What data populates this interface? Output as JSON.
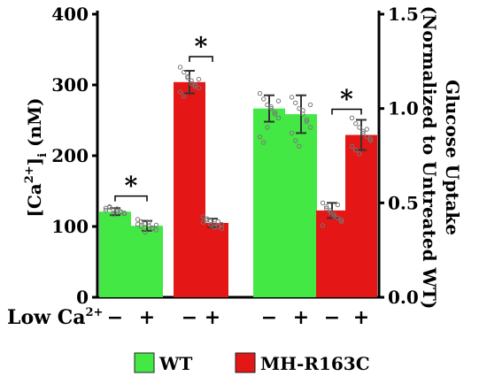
{
  "chart_data": {
    "type": "bar",
    "left_axis": {
      "label_main": "[Ca",
      "label_sup": "2+",
      "label_close": "]",
      "label_sub": "i",
      "label_unit": " (nM)",
      "ylim": [
        0,
        400
      ],
      "ticks": [
        "0",
        "100",
        "200",
        "300",
        "400"
      ]
    },
    "right_axis": {
      "label_line1": "Glucose Uptake",
      "label_line2": "(Normalized to Untreated WT)",
      "ylim": [
        0,
        1.5
      ],
      "ticks": [
        "0.0",
        "0.5",
        "1.0",
        "1.5"
      ]
    },
    "row_label": {
      "main": "Low Ca",
      "sup": "2+"
    },
    "colors": {
      "WT": "#44e844",
      "MH-R163C": "#e41616"
    },
    "bars": [
      {
        "group": "WT",
        "low_ca": "−",
        "axis": "left",
        "value": 121,
        "err": 5,
        "points": [
          126,
          128,
          124,
          122,
          120,
          119,
          123,
          127,
          117,
          125,
          121,
          118
        ]
      },
      {
        "group": "WT",
        "low_ca": "+",
        "axis": "left",
        "value": 101,
        "err": 7,
        "points": [
          110,
          107,
          104,
          101,
          98,
          95,
          103,
          100,
          92,
          106,
          97,
          102
        ]
      },
      {
        "group": "MH-R163C",
        "low_ca": "−",
        "axis": "left",
        "value": 304,
        "err": 16,
        "points": [
          325,
          318,
          310,
          306,
          300,
          296,
          290,
          284,
          312,
          302,
          298,
          308
        ]
      },
      {
        "group": "MH-R163C",
        "low_ca": "+",
        "axis": "left",
        "value": 105,
        "err": 6,
        "points": [
          114,
          111,
          108,
          104,
          100,
          97,
          106,
          109,
          102,
          99,
          107,
          103
        ]
      },
      {
        "group": "WT",
        "low_ca": "−",
        "axis": "right",
        "value": 1.0,
        "err": 0.07,
        "points": [
          1.08,
          1.05,
          1.02,
          1.0,
          0.98,
          0.95,
          0.85,
          0.82,
          0.9,
          1.01,
          0.97,
          1.04
        ]
      },
      {
        "group": "WT",
        "low_ca": "+",
        "axis": "right",
        "value": 0.97,
        "err": 0.1,
        "points": [
          1.06,
          1.03,
          1.0,
          0.97,
          0.94,
          0.9,
          0.87,
          0.83,
          0.8,
          0.99,
          0.93,
          1.02
        ]
      },
      {
        "group": "MH-R163C",
        "low_ca": "−",
        "axis": "right",
        "value": 0.46,
        "err": 0.04,
        "points": [
          0.5,
          0.48,
          0.46,
          0.44,
          0.42,
          0.4,
          0.38,
          0.47,
          0.45,
          0.43,
          0.49,
          0.41
        ]
      },
      {
        "group": "MH-R163C",
        "low_ca": "+",
        "axis": "right",
        "value": 0.86,
        "err": 0.08,
        "points": [
          0.95,
          0.92,
          0.9,
          0.88,
          0.85,
          0.83,
          0.8,
          0.78,
          0.76,
          0.87,
          0.89,
          0.84
        ]
      }
    ],
    "significance": [
      {
        "bars": [
          0,
          1
        ],
        "label": "*"
      },
      {
        "bars": [
          2,
          3
        ],
        "label": "*"
      },
      {
        "bars": [
          6,
          7
        ],
        "label": "*"
      }
    ],
    "legend": [
      {
        "label": "WT",
        "group": "WT"
      },
      {
        "label": "MH-R163C",
        "group": "MH-R163C"
      }
    ]
  }
}
